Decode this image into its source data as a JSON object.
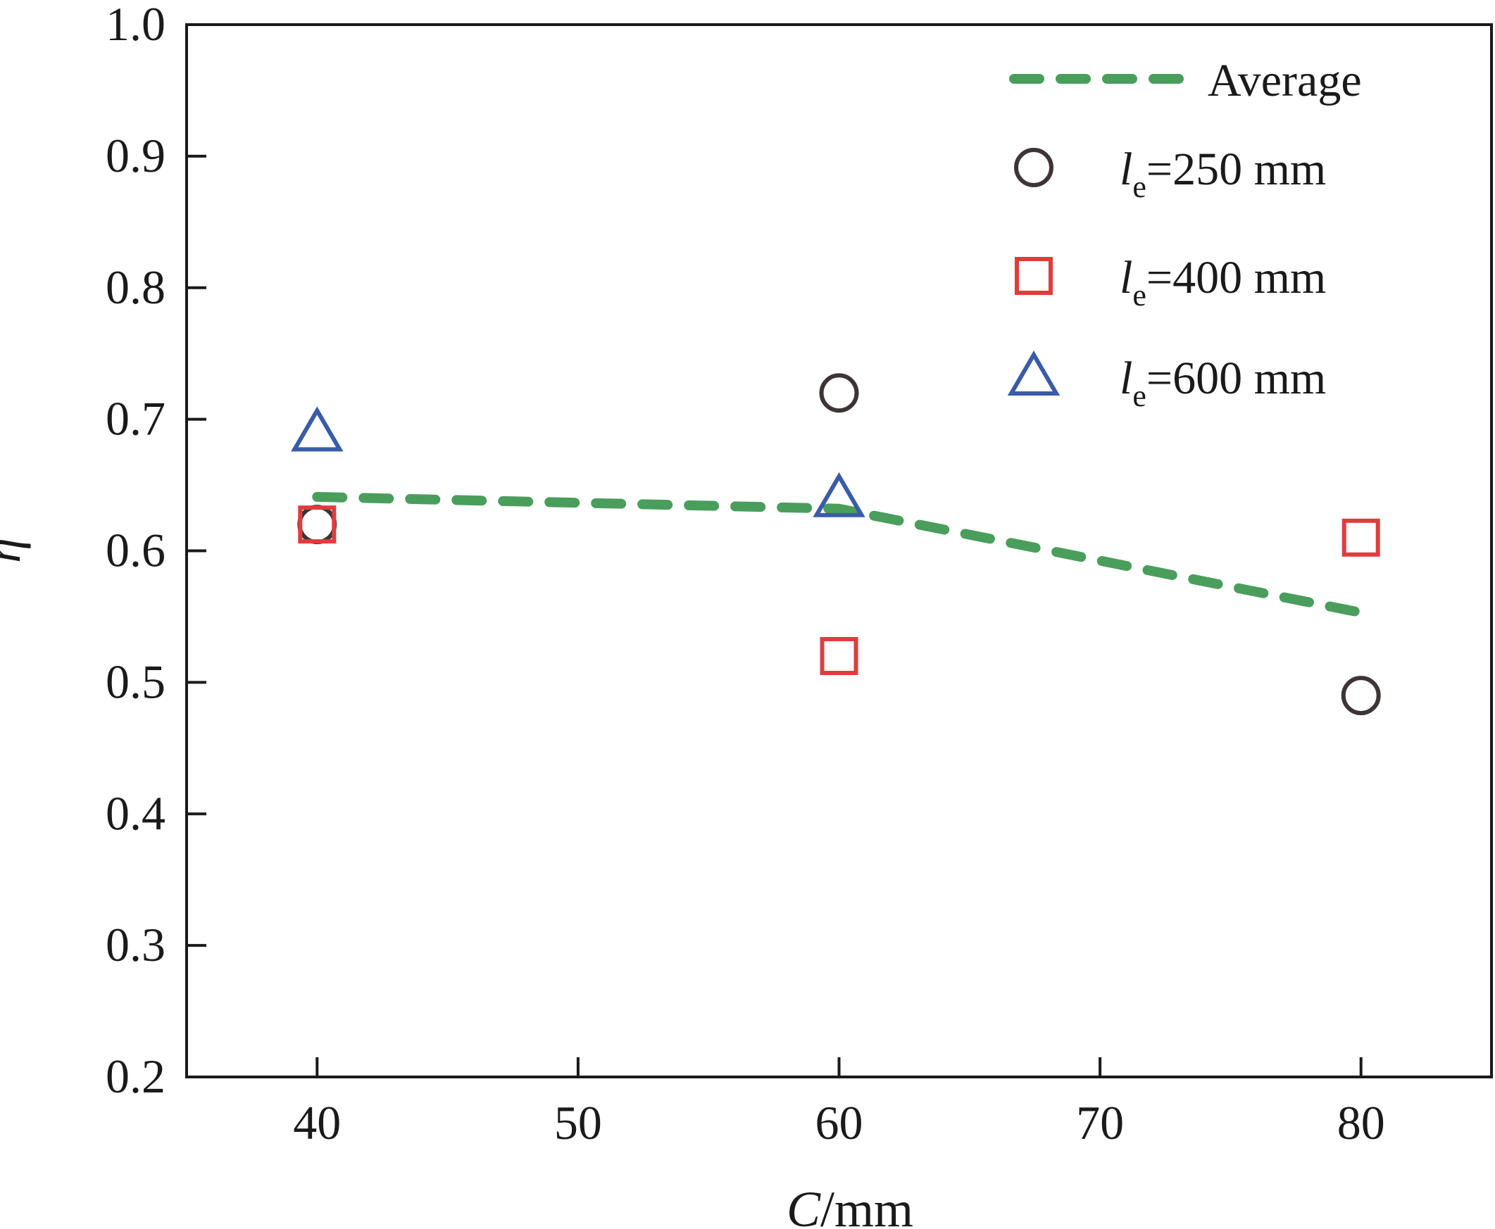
{
  "chart_data": {
    "type": "scatter",
    "title": "",
    "xlabel_italic": "C",
    "xlabel_rest": "/mm",
    "ylabel": "η",
    "xlim": [
      35,
      85
    ],
    "ylim": [
      0.2,
      1.0
    ],
    "xticks": [
      40,
      50,
      60,
      70,
      80
    ],
    "yticks": [
      0.2,
      0.3,
      0.4,
      0.5,
      0.6,
      0.7,
      0.8,
      0.9,
      1.0
    ],
    "ytick_labels": [
      "0.2",
      "0.3",
      "0.4",
      "0.5",
      "0.6",
      "0.7",
      "0.8",
      "0.9",
      "1.0"
    ],
    "grid": false,
    "legend_position": "top-right",
    "average": {
      "name": "Average",
      "color": "#4a9e5c",
      "style": "dashed",
      "x": [
        40,
        60,
        80
      ],
      "y": [
        0.641,
        0.632,
        0.553
      ]
    },
    "series": [
      {
        "name_var": "l",
        "name_sub": "e",
        "name_rest": "=250 mm",
        "marker": "circle",
        "color": "#3d3535",
        "x": [
          40,
          60,
          80
        ],
        "y": [
          0.62,
          0.72,
          0.49
        ]
      },
      {
        "name_var": "l",
        "name_sub": "e",
        "name_rest": "=400 mm",
        "marker": "square",
        "color": "#e03c3c",
        "x": [
          40,
          60,
          80
        ],
        "y": [
          0.62,
          0.52,
          0.61
        ]
      },
      {
        "name_var": "l",
        "name_sub": "e",
        "name_rest": "=600 mm",
        "marker": "triangle",
        "color": "#3a5ba8",
        "x": [
          40,
          60
        ],
        "y": [
          0.69,
          0.64
        ]
      }
    ]
  }
}
